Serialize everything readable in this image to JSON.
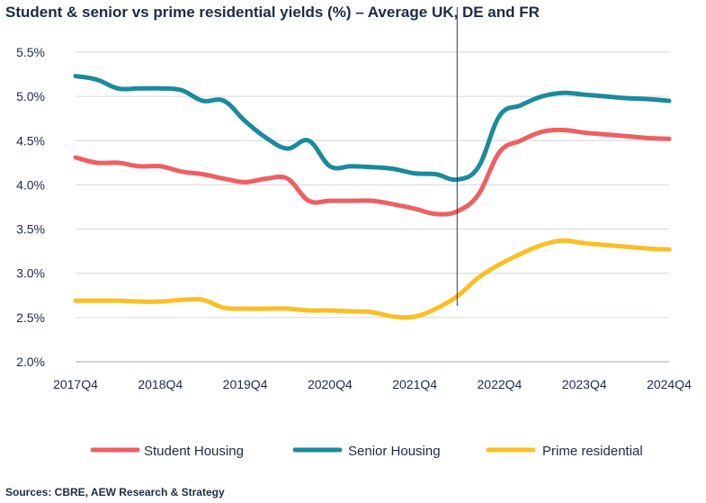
{
  "chart_data": {
    "type": "line",
    "title": "Student & senior vs prime residential yields (%) – Average UK, DE and FR",
    "x": [
      "2017Q4",
      "2018Q1",
      "2018Q2",
      "2018Q3",
      "2018Q4",
      "2019Q1",
      "2019Q2",
      "2019Q3",
      "2019Q4",
      "2020Q1",
      "2020Q2",
      "2020Q3",
      "2020Q4",
      "2021Q1",
      "2021Q2",
      "2021Q3",
      "2021Q4",
      "2022Q1",
      "2022Q2",
      "2022Q3",
      "2022Q4",
      "2023Q1",
      "2023Q2",
      "2023Q3",
      "2023Q4",
      "2024Q1",
      "2024Q2",
      "2024Q3",
      "2024Q4"
    ],
    "x_tick_labels": [
      "2017Q4",
      "2018Q4",
      "2019Q4",
      "2020Q4",
      "2021Q4",
      "2022Q4",
      "2023Q4",
      "2024Q4"
    ],
    "y_tick_labels": [
      "2.0%",
      "2.5%",
      "3.0%",
      "3.5%",
      "4.0%",
      "4.5%",
      "5.0%",
      "5.5%"
    ],
    "ylim": [
      2.0,
      5.5
    ],
    "grid": true,
    "legend_position": "bottom",
    "vertical_marker_x": "2022Q2",
    "series": [
      {
        "name": "Student Housing",
        "color": "#ef5f62",
        "values": [
          4.31,
          4.25,
          4.25,
          4.21,
          4.21,
          4.15,
          4.12,
          4.07,
          4.03,
          4.07,
          4.07,
          3.82,
          3.82,
          3.82,
          3.82,
          3.78,
          3.73,
          3.67,
          3.7,
          3.89,
          4.37,
          4.5,
          4.6,
          4.62,
          4.59,
          4.57,
          4.55,
          4.53,
          4.52
        ]
      },
      {
        "name": "Senior Housing",
        "color": "#1b8a9c",
        "values": [
          5.23,
          5.19,
          5.09,
          5.09,
          5.09,
          5.07,
          4.95,
          4.95,
          4.72,
          4.53,
          4.41,
          4.5,
          4.21,
          4.21,
          4.2,
          4.18,
          4.13,
          4.12,
          4.06,
          4.2,
          4.78,
          4.9,
          5.0,
          5.04,
          5.02,
          5.0,
          4.98,
          4.97,
          4.95
        ]
      },
      {
        "name": "Prime residential",
        "color": "#fbbf24",
        "values": [
          2.69,
          2.69,
          2.69,
          2.68,
          2.68,
          2.7,
          2.7,
          2.61,
          2.6,
          2.6,
          2.6,
          2.58,
          2.58,
          2.57,
          2.56,
          2.51,
          2.51,
          2.6,
          2.74,
          2.95,
          3.1,
          3.22,
          3.32,
          3.37,
          3.34,
          3.32,
          3.3,
          3.28,
          3.27
        ]
      }
    ]
  },
  "source": "Sources: CBRE, AEW Research & Strategy"
}
